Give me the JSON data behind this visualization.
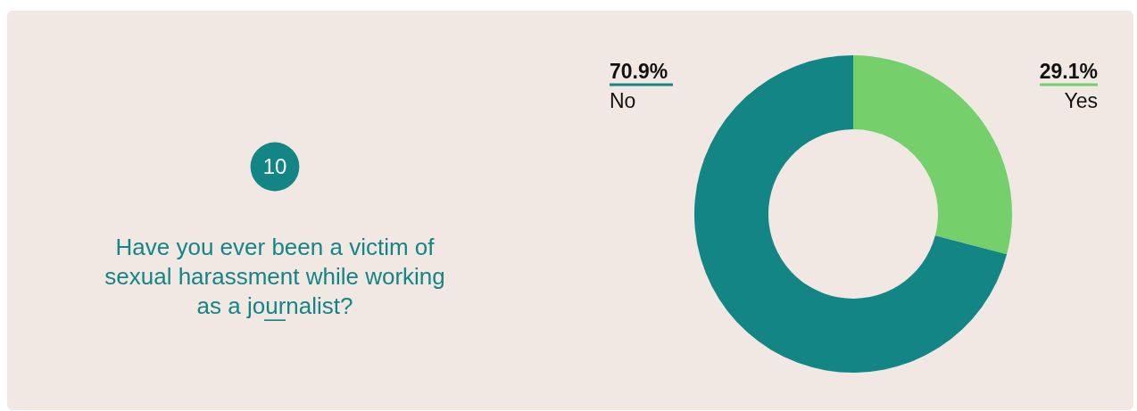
{
  "chart_data": {
    "type": "donut",
    "title": "Have you ever been a victim of\nsexual harassment while working\nas a journalist?",
    "annotations": [
      "10",
      "—"
    ],
    "categories": [
      "Yes",
      "No"
    ],
    "values": [
      29.1,
      70.9
    ],
    "colors": [
      "#75d06c",
      "#138585"
    ],
    "value_labels": [
      "29.1%",
      "70.9%"
    ],
    "legend": "top"
  }
}
